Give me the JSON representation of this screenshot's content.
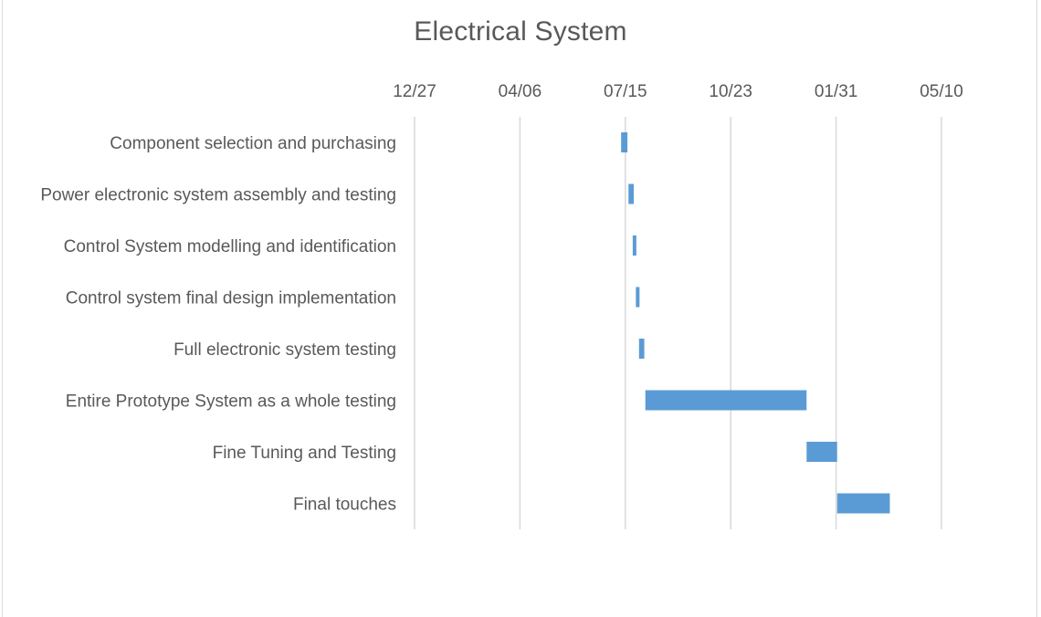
{
  "chart_data": {
    "type": "bar",
    "subtype": "gantt",
    "title": "Electrical System",
    "xlabel": "",
    "ylabel": "",
    "x_axis": {
      "type": "date",
      "position": "top",
      "tick_labels": [
        "12/27",
        "04/06",
        "07/15",
        "10/23",
        "01/31",
        "05/10"
      ],
      "tick_dates": [
        "2018-12-27",
        "2019-04-06",
        "2019-07-15",
        "2019-10-23",
        "2020-01-31",
        "2020-05-10"
      ],
      "range": [
        "2018-12-27",
        "2020-05-10"
      ],
      "grid": true
    },
    "bar_color": "#5b9bd5",
    "legend": "none",
    "tasks": [
      {
        "name": "Component selection and purchasing",
        "start": "2019-07-11",
        "end": "2019-07-17"
      },
      {
        "name": "Power electronic system assembly and testing",
        "start": "2019-07-18",
        "end": "2019-07-23"
      },
      {
        "name": "Control System modelling and identification",
        "start": "2019-07-22",
        "end": "2019-07-25"
      },
      {
        "name": "Control system final design implementation",
        "start": "2019-07-25",
        "end": "2019-07-28"
      },
      {
        "name": "Full electronic system testing",
        "start": "2019-07-28",
        "end": "2019-08-02"
      },
      {
        "name": "Entire Prototype System as a whole testing",
        "start": "2019-08-03",
        "end": "2020-01-03"
      },
      {
        "name": "Fine Tuning and Testing",
        "start": "2020-01-03",
        "end": "2020-02-01"
      },
      {
        "name": "Final touches",
        "start": "2020-02-01",
        "end": "2020-03-22"
      }
    ]
  }
}
